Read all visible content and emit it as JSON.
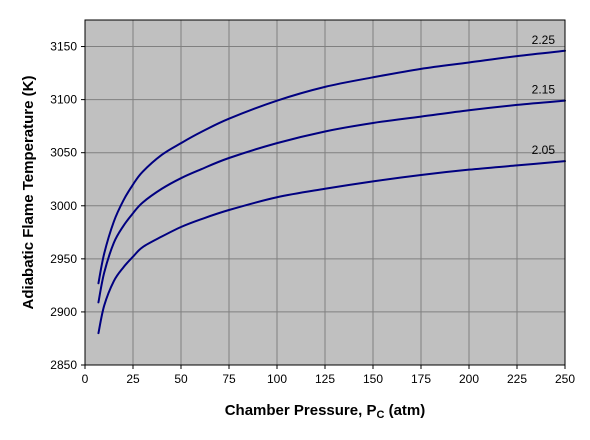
{
  "chart_data": {
    "type": "line",
    "title": "",
    "xlabel": "Chamber Pressure, P",
    "xlabel_subscript": "C",
    "xlabel_suffix": " (atm)",
    "ylabel": "Adiabatic Flame Temperature (K)",
    "xlim": [
      0,
      250
    ],
    "ylim": [
      2850,
      3175
    ],
    "x_ticks": [
      "0",
      "25",
      "50",
      "75",
      "100",
      "125",
      "150",
      "175",
      "200",
      "225",
      "250"
    ],
    "y_ticks": [
      "2850",
      "2900",
      "2950",
      "3000",
      "3050",
      "3100",
      "3150"
    ],
    "grid": true,
    "legend": "none",
    "colors": {
      "plot_background": "#c0c0c0",
      "grid": "#808080",
      "line": "#000080",
      "frame": "#000000"
    },
    "x": [
      7,
      10,
      15,
      20,
      25,
      30,
      40,
      50,
      60,
      75,
      100,
      125,
      150,
      175,
      200,
      225,
      250
    ],
    "series": [
      {
        "name": "2.25",
        "values": [
          2927,
          2955,
          2985,
          3005,
          3020,
          3032,
          3048,
          3059,
          3069,
          3082,
          3099,
          3112,
          3121,
          3129,
          3135,
          3141,
          3146
        ]
      },
      {
        "name": "2.15",
        "values": [
          2909,
          2937,
          2965,
          2981,
          2993,
          3003,
          3016,
          3026,
          3034,
          3045,
          3059,
          3070,
          3078,
          3084,
          3090,
          3095,
          3099
        ]
      },
      {
        "name": "2.05",
        "values": [
          2880,
          2906,
          2929,
          2942,
          2952,
          2961,
          2971,
          2980,
          2987,
          2996,
          3008,
          3016,
          3023,
          3029,
          3034,
          3038,
          3042
        ]
      }
    ]
  }
}
